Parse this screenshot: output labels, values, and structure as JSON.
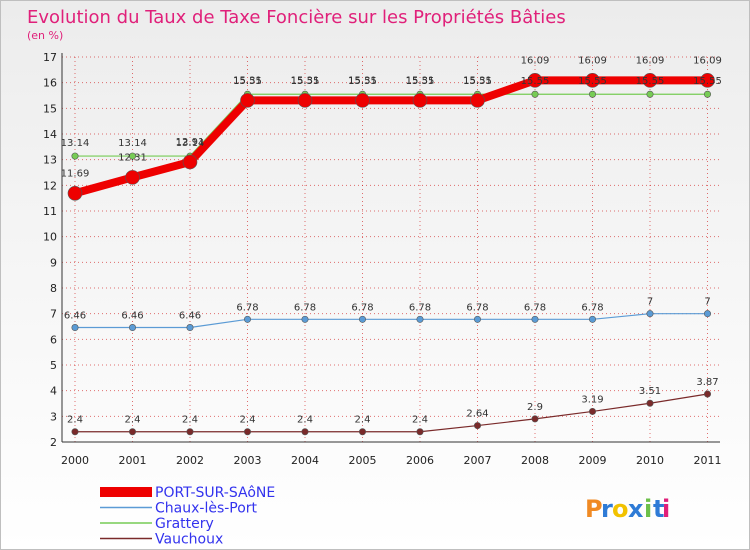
{
  "title": "Evolution du Taux de Taxe Foncière sur les Propriétés Bâties",
  "subtitle": "(en %)",
  "brand": {
    "text": "Proxiti",
    "letters": [
      "P",
      "r",
      "o",
      "x",
      "i",
      "t",
      "i"
    ],
    "colors": [
      "#f08a24",
      "#2e7bd6",
      "#f2c200",
      "#2e7bd6",
      "#6cc04a",
      "#2e7bd6",
      "#e0207a"
    ]
  },
  "colors": {
    "title": "#e0207a",
    "legend_text": "#3333ee",
    "grid": "#cc0000"
  },
  "chart_data": {
    "type": "line",
    "x": [
      "2000",
      "2001",
      "2002",
      "2003",
      "2004",
      "2005",
      "2006",
      "2007",
      "2008",
      "2009",
      "2010",
      "2011"
    ],
    "ylim": [
      2,
      17
    ],
    "yticks": [
      2,
      3,
      4,
      5,
      6,
      7,
      8,
      9,
      10,
      11,
      12,
      13,
      14,
      15,
      16,
      17
    ],
    "grid": true,
    "legend_position": "bottom-left",
    "series": [
      {
        "name": "PORT-SUR-SAôNE",
        "color": "#ee0000",
        "values": [
          11.69,
          12.31,
          12.91,
          15.31,
          15.31,
          15.31,
          15.31,
          15.31,
          16.09,
          16.09,
          16.09,
          16.09
        ],
        "labels": [
          "11.69",
          "12.31",
          "12.91",
          "15.31",
          "15.31",
          "15.31",
          "15.31",
          "15.31",
          "16.09",
          "16.09",
          "16.09",
          "16.09"
        ]
      },
      {
        "name": "Chaux-lès-Port",
        "color": "#5b9bd5",
        "values": [
          6.46,
          6.46,
          6.46,
          6.78,
          6.78,
          6.78,
          6.78,
          6.78,
          6.78,
          6.78,
          7,
          7
        ],
        "labels": [
          "6.46",
          "6.46",
          "6.46",
          "6.78",
          "6.78",
          "6.78",
          "6.78",
          "6.78",
          "6.78",
          "6.78",
          "7",
          "7"
        ]
      },
      {
        "name": "Grattery",
        "color": "#77cc55",
        "values": [
          13.14,
          13.14,
          13.14,
          15.55,
          15.55,
          15.55,
          15.55,
          15.55,
          15.55,
          15.55,
          15.55,
          15.55
        ],
        "labels": [
          "13.14",
          "13.14",
          "13.14",
          "15.55",
          "15.55",
          "15.55",
          "15.55",
          "15.55",
          "15.55",
          "15.55",
          "15.55",
          "15.55"
        ]
      },
      {
        "name": "Vauchoux",
        "color": "#7a2a2a",
        "values": [
          2.4,
          2.4,
          2.4,
          2.4,
          2.4,
          2.4,
          2.4,
          2.64,
          2.9,
          3.19,
          3.51,
          3.87
        ],
        "labels": [
          "2.4",
          "2.4",
          "2.4",
          "2.4",
          "2.4",
          "2.4",
          "2.4",
          "2.64",
          "2.9",
          "3.19",
          "3.51",
          "3.87"
        ]
      }
    ]
  }
}
